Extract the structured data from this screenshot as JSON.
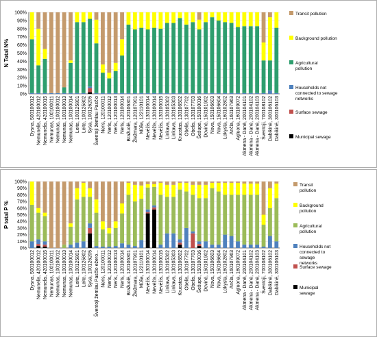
{
  "chart_data": [
    {
      "type": "bar",
      "stacked": true,
      "ylabel": "N Total N%",
      "ylim": [
        0,
        100
      ],
      "yticks": [
        "0%",
        "10%",
        "20%",
        "30%",
        "40%",
        "50%",
        "60%",
        "70%",
        "80%",
        "90%",
        "100%"
      ],
      "categories": [
        "Dysna, 500100012",
        "Nemunelis, 420100012",
        "Nemunelis, 420100015",
        "Nemunas, 100100011",
        "Nemunas, 100100012",
        "Nemunas, 100100013",
        "Nemunas, 100100014",
        "Leite, 100125801",
        "Leite, 100125802",
        "Sysa, 100126205",
        "Šventoji žemiau Pasčio",
        "Neris, 120100011",
        "Neris, 120100012",
        "Neris, 120100013",
        "Neris, 120100014",
        "Bražuolė, 120106301",
        "Žiežmara, 120107901",
        "Mūša, 122110101",
        "Nevėžis, 130100014",
        "Nevėžis, 130100014",
        "Nevėžis, 130100015",
        "Linkava, 130105302",
        "Linkava, 130105303",
        "Kruostas, 130106502",
        "Obelis, 130107702",
        "Obelis, 130107703",
        "Šešupė, 150100016",
        "Dovinė, 150101902",
        "Nova, 150106603",
        "Nova, 150106604",
        "Lokysta, 160102802",
        "Ančia, 160107963",
        "Agluona, 160109072",
        "Akmena - Danė, 200104101",
        "Akmena - Danė, 200104102",
        "Akmena - Danė, 200104103",
        "Šventoji, 700108102",
        "Dabikinė, 300106102",
        "Dabikinė, 300106103"
      ],
      "series": [
        {
          "name": "Municipal sewage",
          "color": "#000000",
          "values": [
            0,
            0,
            0,
            0,
            0,
            0,
            0,
            0,
            0,
            2,
            0,
            0,
            0,
            0,
            0,
            0,
            0,
            0,
            0,
            0,
            0,
            0,
            0,
            0,
            0,
            0,
            0,
            0,
            0,
            0,
            0,
            0,
            0,
            0,
            0,
            0,
            0,
            0,
            0
          ]
        },
        {
          "name": "Surface sewage",
          "color": "#c0504d",
          "values": [
            0,
            0,
            0,
            0,
            0,
            0,
            0,
            0,
            0,
            5,
            0,
            0,
            0,
            0,
            0,
            0,
            0,
            0,
            0,
            0,
            0,
            0,
            0,
            0,
            0,
            0,
            0,
            0,
            0,
            0,
            0,
            0,
            0,
            0,
            0,
            0,
            0,
            0,
            0
          ]
        },
        {
          "name": "Households not connected to sewage networks",
          "color": "#4f81bd",
          "values": [
            1,
            1,
            1,
            1,
            1,
            1,
            1,
            1,
            1,
            2,
            1,
            1,
            1,
            1,
            1,
            1,
            1,
            1,
            1,
            1,
            1,
            1,
            1,
            1,
            1,
            1,
            1,
            1,
            1,
            1,
            1,
            1,
            1,
            1,
            1,
            1,
            1,
            4,
            1
          ]
        },
        {
          "name": "Agricultural pollution",
          "color": "#2e9e6e",
          "values": [
            66,
            34,
            42,
            0,
            0,
            7,
            37,
            87,
            87,
            83,
            61,
            25,
            18,
            27,
            46,
            84,
            78,
            80,
            78,
            80,
            79,
            86,
            86,
            92,
            84,
            87,
            78,
            87,
            93,
            89,
            87,
            86,
            81,
            82,
            82,
            82,
            40,
            37,
            80
          ]
        },
        {
          "name": "Background pollution",
          "color": "#ffff00",
          "values": [
            33,
            45,
            12,
            0,
            0,
            0,
            3,
            12,
            12,
            8,
            29,
            10,
            7,
            10,
            20,
            15,
            21,
            19,
            21,
            19,
            20,
            13,
            13,
            7,
            15,
            12,
            12,
            12,
            6,
            10,
            12,
            13,
            18,
            17,
            17,
            17,
            22,
            53,
            19
          ]
        },
        {
          "name": "Transit pollution",
          "color": "#c49a6c",
          "values": [
            0,
            20,
            45,
            99,
            99,
            92,
            59,
            0,
            0,
            0,
            9,
            64,
            74,
            62,
            33,
            0,
            0,
            0,
            0,
            0,
            0,
            0,
            0,
            0,
            0,
            0,
            9,
            0,
            0,
            0,
            0,
            0,
            0,
            0,
            0,
            0,
            37,
            6,
            0
          ]
        }
      ],
      "legend_position": "right"
    },
    {
      "type": "bar",
      "stacked": true,
      "ylabel": "P total P %",
      "ylim": [
        0,
        100
      ],
      "yticks": [
        "0%",
        "10%",
        "20%",
        "30%",
        "40%",
        "50%",
        "60%",
        "70%",
        "80%",
        "90%",
        "100%"
      ],
      "categories": [
        "Dysna, 500100012",
        "Nemunelis, 420100012",
        "Nemunelis, 420100015",
        "Nemunas, 100100011",
        "Nemunas, 100100012",
        "Nemunas, 100100013",
        "Nemunas, 100100014",
        "Leite, 100125801",
        "Leite, 100125802",
        "Sysa, 100126205",
        "Šventoji žemiau Pasčio ežero...",
        "Neris, 120100011",
        "Neris, 120100012",
        "Neris, 120100013",
        "Neris, 120100014",
        "Bražuolė, 120106301",
        "Žiežmara, 120107901",
        "Mūša, 122110101",
        "Nevėžis, 130100014",
        "Nevėžis, 130100014",
        "Nevėžis, 130100015",
        "Linkava, 130105302",
        "Linkava, 130105303",
        "Kruostas, 130106502",
        "Obelis, 130107702",
        "Obelis, 130107703",
        "Šešupė, 150100016",
        "Dovinė, 150101902",
        "Nova, 150106603",
        "Nova, 150106604",
        "Lokysta, 160102802",
        "Ančia, 160107963",
        "Agluona, 160109072",
        "Akmena - Danė, 200104101",
        "Akmena - Danė, 200104102",
        "Akmena - Danė, 200104103",
        "Šventoji, 700108102",
        "Dabikinė, 300106102",
        "Dabikinė, 300106103"
      ],
      "series": [
        {
          "name": "Municipal sewage",
          "color": "#000000",
          "values": [
            0,
            3,
            2,
            0,
            0,
            0,
            0,
            0,
            0,
            22,
            0,
            0,
            0,
            0,
            0,
            0,
            0,
            0,
            52,
            58,
            0,
            0,
            0,
            5,
            0,
            0,
            3,
            0,
            0,
            0,
            0,
            0,
            0,
            0,
            0,
            0,
            0,
            0,
            0
          ]
        },
        {
          "name": "Surface sewage",
          "color": "#c0504d",
          "values": [
            0,
            3,
            3,
            0,
            0,
            0,
            0,
            0,
            0,
            8,
            0,
            0,
            0,
            0,
            0,
            0,
            0,
            0,
            2,
            3,
            0,
            0,
            0,
            3,
            0,
            22,
            3,
            0,
            0,
            0,
            0,
            0,
            0,
            0,
            0,
            0,
            0,
            0,
            0
          ]
        },
        {
          "name": "Households not connected to sewage networks",
          "color": "#4f81bd",
          "values": [
            10,
            7,
            5,
            0,
            0,
            0,
            5,
            8,
            10,
            7,
            3,
            2,
            2,
            3,
            7,
            5,
            3,
            12,
            4,
            3,
            5,
            22,
            22,
            5,
            30,
            3,
            4,
            10,
            5,
            5,
            20,
            18,
            10,
            5,
            5,
            5,
            2,
            18,
            10
          ]
        },
        {
          "name": "Agricultural pollution",
          "color": "#9bbb59",
          "values": [
            55,
            40,
            38,
            0,
            0,
            5,
            27,
            65,
            67,
            40,
            50,
            26,
            20,
            27,
            45,
            75,
            67,
            62,
            33,
            28,
            75,
            55,
            55,
            75,
            55,
            55,
            65,
            65,
            85,
            80,
            60,
            62,
            70,
            75,
            75,
            75,
            33,
            42,
            65
          ]
        },
        {
          "name": "Background pollution",
          "color": "#ffff00",
          "values": [
            35,
            7,
            5,
            0,
            0,
            0,
            5,
            17,
            21,
            13,
            20,
            12,
            8,
            10,
            15,
            18,
            25,
            20,
            5,
            4,
            18,
            18,
            18,
            10,
            13,
            15,
            20,
            20,
            8,
            13,
            18,
            18,
            18,
            17,
            17,
            17,
            15,
            30,
            22
          ]
        },
        {
          "name": "Transit pollution",
          "color": "#c49a6c",
          "values": [
            0,
            40,
            47,
            100,
            100,
            95,
            63,
            10,
            2,
            10,
            27,
            60,
            70,
            60,
            33,
            2,
            5,
            6,
            4,
            4,
            2,
            5,
            5,
            2,
            2,
            5,
            5,
            5,
            2,
            2,
            2,
            2,
            2,
            3,
            3,
            3,
            50,
            10,
            3
          ]
        }
      ],
      "legend_position": "right"
    }
  ]
}
